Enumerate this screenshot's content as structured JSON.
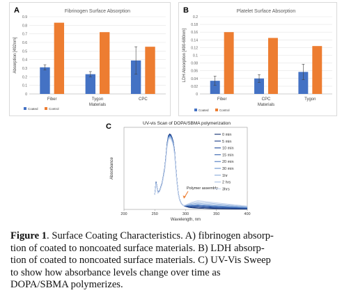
{
  "chart_data": [
    {
      "type": "bar",
      "panel_label": "A",
      "title": "Fibrinogen Surface Absorption",
      "xlabel": "Materials",
      "ylabel": "Absorption [492nm]",
      "categories": [
        "Fiber",
        "Tygon",
        "CPC"
      ],
      "ylim": [
        0,
        0.9
      ],
      "yticks": [
        "0",
        "0.1",
        "0.2",
        "0.3",
        "0.4",
        "0.5",
        "0.6",
        "0.7",
        "0.8",
        "0.9"
      ],
      "series": [
        {
          "name": "Coated",
          "color": "#4472C4",
          "values": [
            0.31,
            0.23,
            0.39
          ],
          "errors": [
            0.03,
            0.03,
            0.16
          ]
        },
        {
          "name": "Control",
          "color": "#ED7D31",
          "values": [
            0.83,
            0.72,
            0.55
          ],
          "errors": [
            0,
            0,
            0
          ]
        }
      ],
      "legend": "bottom-left",
      "grid": true
    },
    {
      "type": "bar",
      "panel_label": "B",
      "title": "Platelet Surface Absorption",
      "xlabel": "Materials",
      "ylabel": "LDH Absorption [490-680nm]",
      "categories": [
        "Fiber",
        "CPC",
        "Tygon"
      ],
      "ylim": [
        0,
        0.2
      ],
      "yticks": [
        "0",
        "0.02",
        "0.04",
        "0.06",
        "0.08",
        "0.1",
        "0.12",
        "0.14",
        "0.16",
        "0.18",
        "0.2"
      ],
      "series": [
        {
          "name": "Coated",
          "color": "#4472C4",
          "values": [
            0.034,
            0.04,
            0.057
          ],
          "errors": [
            0.012,
            0.01,
            0.02
          ]
        },
        {
          "name": "Control",
          "color": "#ED7D31",
          "values": [
            0.16,
            0.145,
            0.124
          ],
          "errors": [
            0,
            0,
            0
          ]
        }
      ],
      "legend": "bottom-left",
      "grid": true
    },
    {
      "type": "line",
      "panel_label": "C",
      "title": "UV-vis Scan of DOPA/SBMA polymerization",
      "xlabel": "Wavelength, nm",
      "ylabel": "Absorbance",
      "xlim": [
        200,
        400
      ],
      "ylim": [
        0,
        3.1
      ],
      "xticks": [
        "200",
        "250",
        "300",
        "350",
        "400"
      ],
      "series_names": [
        "0 min",
        "5 min",
        "10 min",
        "15 min",
        "20 min",
        "30 min",
        "1hr",
        "2 hrs",
        "3hrs"
      ],
      "series_colors": [
        "#0d2a6b",
        "#183b86",
        "#244c9c",
        "#3561ae",
        "#4a78bf",
        "#6590cc",
        "#86a9d9",
        "#a7c0e4",
        "#c6d4ec"
      ],
      "profile_x": [
        250,
        252,
        255,
        258,
        262,
        266,
        268,
        270,
        272,
        274,
        276,
        278,
        280,
        282,
        284,
        286,
        288,
        290,
        293,
        296,
        300,
        305,
        310,
        320,
        330,
        340,
        350,
        360,
        380,
        400
      ],
      "profile_y": [
        0.58,
        1.05,
        0.65,
        0.72,
        1.02,
        1.55,
        2.0,
        2.5,
        2.78,
        2.85,
        2.82,
        2.72,
        2.55,
        2.2,
        1.6,
        1.05,
        0.62,
        0.38,
        0.22,
        0.15,
        0.11,
        0.08,
        0.06,
        0.045,
        0.035,
        0.03,
        0.025,
        0.02,
        0.015,
        0.01
      ],
      "series_scale": [
        1.0,
        0.995,
        0.99,
        0.985,
        0.98,
        0.975,
        0.965,
        0.955,
        0.94
      ],
      "tail_lift": [
        0.0,
        0.03,
        0.06,
        0.09,
        0.12,
        0.15,
        0.2,
        0.25,
        0.3
      ],
      "annotation": "Polymer assembly",
      "legend": "right"
    }
  ],
  "caption": {
    "bold": "Figure 1",
    "text": ". Surface Coating Characteristics. A) fibrinogen absorp-tion of coated to noncoated surface materials. B) LDH absorp-tion of coated to noncoated surface materials. C) UV-Vis Sweep to show how absorbance levels change over time as DOPA/SBMA polymerizes.",
    "lines": [
      ". Surface Coating Characteristics. A) fibrinogen absorp-",
      "tion of coated to noncoated surface materials. B) LDH absorp-",
      "tion of coated to noncoated surface materials. C) UV-Vis Sweep",
      "to show how absorbance levels change over time as",
      "DOPA/SBMA polymerizes."
    ]
  }
}
